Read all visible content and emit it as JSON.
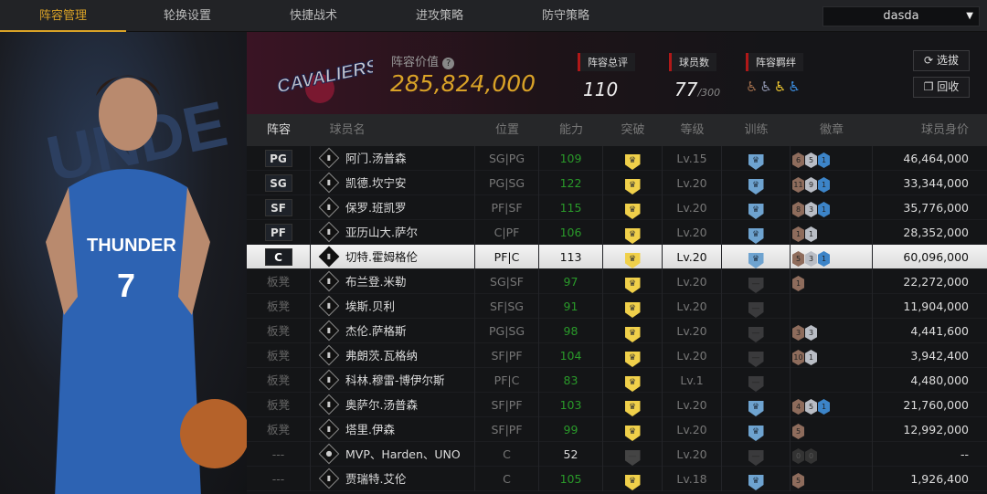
{
  "nav": {
    "tabs": [
      "阵容管理",
      "轮换设置",
      "快捷战术",
      "进攻策略",
      "防守策略"
    ],
    "active": 0,
    "account": "dasda"
  },
  "header": {
    "team_value_label": "阵容价值",
    "team_value": "285,824,000",
    "rating_label": "阵容总评",
    "rating": "110",
    "players_label": "球员数",
    "players": "77",
    "players_max": "/300",
    "bonds_label": "阵容羁绊",
    "select_btn": "选拔",
    "recycle_btn": "回收",
    "logo": "CLEVELAND CAVALIERS"
  },
  "columns": [
    "阵容",
    "球员名",
    "位置",
    "能力",
    "突破",
    "等级",
    "训练",
    "徽章",
    "球员身价"
  ],
  "colors": {
    "accent": "#d9a227",
    "ability": "#2a9a2a",
    "bronze": "#8e6c5c",
    "silver": "#b9bdc5",
    "blue": "#3c84c8",
    "break": "#f0d04a",
    "train": "#6ea3d0"
  },
  "rows": [
    {
      "slot": "PG",
      "starter": true,
      "name": "阿门.汤普森",
      "pos": "SG|PG",
      "ability": "109",
      "brk": true,
      "lvl": "Lv.15",
      "train": true,
      "badges": [
        "6",
        "5",
        "1"
      ],
      "value": "46,464,000"
    },
    {
      "slot": "SG",
      "starter": true,
      "name": "凯德.坎宁安",
      "pos": "PG|SG",
      "ability": "122",
      "brk": true,
      "lvl": "Lv.20",
      "train": true,
      "badges": [
        "11",
        "9",
        "1"
      ],
      "value": "33,344,000"
    },
    {
      "slot": "SF",
      "starter": true,
      "name": "保罗.班凯罗",
      "pos": "PF|SF",
      "ability": "115",
      "brk": true,
      "lvl": "Lv.20",
      "train": true,
      "badges": [
        "8",
        "3",
        "1"
      ],
      "value": "35,776,000"
    },
    {
      "slot": "PF",
      "starter": true,
      "name": "亚历山大.萨尔",
      "pos": "C|PF",
      "ability": "106",
      "brk": true,
      "lvl": "Lv.20",
      "train": true,
      "badges": [
        "1",
        "1"
      ],
      "value": "28,352,000"
    },
    {
      "slot": "C",
      "starter": true,
      "selected": true,
      "name": "切特.霍姆格伦",
      "pos": "PF|C",
      "ability": "113",
      "brk": true,
      "lvl": "Lv.20",
      "train": true,
      "badges": [
        "5",
        "3",
        "1"
      ],
      "value": "60,096,000"
    },
    {
      "slot": "板凳",
      "name": "布兰登.米勒",
      "pos": "SG|SF",
      "ability": "97",
      "brk": true,
      "lvl": "Lv.20",
      "train": false,
      "badges": [
        "1"
      ],
      "value": "22,272,000"
    },
    {
      "slot": "板凳",
      "name": "埃斯.贝利",
      "pos": "SF|SG",
      "ability": "91",
      "brk": true,
      "lvl": "Lv.20",
      "train": false,
      "badges": [],
      "value": "11,904,000"
    },
    {
      "slot": "板凳",
      "name": "杰伦.萨格斯",
      "pos": "PG|SG",
      "ability": "98",
      "brk": true,
      "lvl": "Lv.20",
      "train": false,
      "badges": [
        "3",
        "3"
      ],
      "value": "4,441,600"
    },
    {
      "slot": "板凳",
      "name": "弗朗茨.瓦格纳",
      "pos": "SF|PF",
      "ability": "104",
      "brk": true,
      "lvl": "Lv.20",
      "train": false,
      "badges": [
        "10",
        "1"
      ],
      "value": "3,942,400"
    },
    {
      "slot": "板凳",
      "name": "科林.穆雷-博伊尔斯",
      "pos": "PF|C",
      "ability": "83",
      "brk": true,
      "lvl": "Lv.1",
      "train": false,
      "badges": [],
      "value": "4,480,000"
    },
    {
      "slot": "板凳",
      "name": "奥萨尔.汤普森",
      "pos": "SF|PF",
      "ability": "103",
      "brk": true,
      "lvl": "Lv.20",
      "train": true,
      "badges": [
        "4",
        "5",
        "1"
      ],
      "value": "21,760,000"
    },
    {
      "slot": "板凳",
      "name": "塔里.伊森",
      "pos": "SF|PF",
      "ability": "99",
      "brk": true,
      "lvl": "Lv.20",
      "train": true,
      "badges": [
        "5"
      ],
      "value": "12,992,000"
    },
    {
      "slot": "---",
      "name": "MVP、Harden、UNO",
      "pos": "C",
      "ability": "52",
      "white": true,
      "brk": false,
      "lvl": "Lv.20",
      "train": false,
      "badges": [
        "0",
        "0"
      ],
      "empty": true,
      "value": "--",
      "person": true
    },
    {
      "slot": "---",
      "name": "贾瑞特.艾伦",
      "pos": "C",
      "ability": "105",
      "brk": true,
      "lvl": "Lv.18",
      "train": true,
      "badges": [
        "5"
      ],
      "value": "1,926,400"
    }
  ]
}
